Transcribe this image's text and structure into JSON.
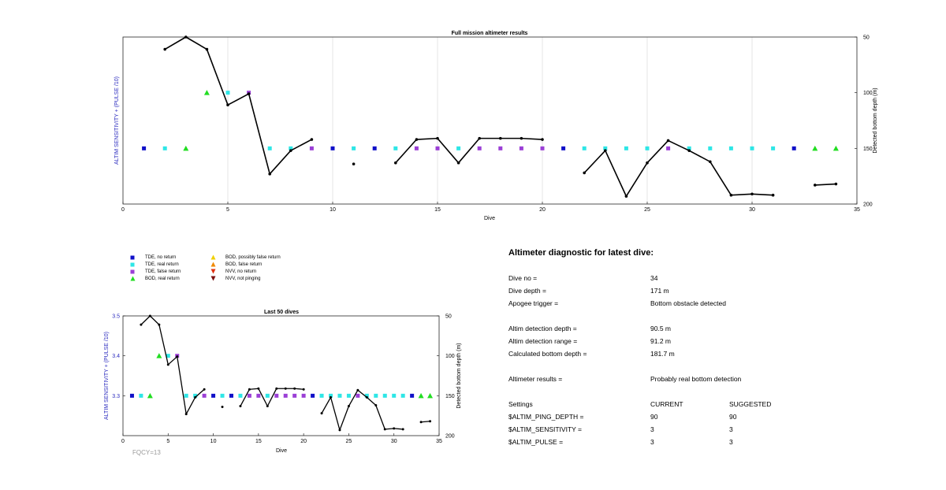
{
  "colors": {
    "tde_no_return": "#1010c8",
    "tde_real_return": "#2ee6e6",
    "tde_false_return": "#9b3fd6",
    "bod_real_return": "#22dd22",
    "bod_possibly_false": "#f0d000",
    "bod_false_return": "#f08a00",
    "nvv_no_return": "#e03010",
    "nvv_not_pinging": "#7a1010",
    "depth_line": "#000000",
    "left_axis_label": "#2b2bbf"
  },
  "legend": [
    {
      "label": "TDE, no return",
      "shape": "square",
      "color_key": "tde_no_return"
    },
    {
      "label": "TDE, real return",
      "shape": "square",
      "color_key": "tde_real_return"
    },
    {
      "label": "TDE, false return",
      "shape": "square",
      "color_key": "tde_false_return"
    },
    {
      "label": "BOD, real return",
      "shape": "triangle-up",
      "color_key": "bod_real_return"
    },
    {
      "label": "BOD, possibly false return",
      "shape": "triangle-up",
      "color_key": "bod_possibly_false"
    },
    {
      "label": "BOD, false return",
      "shape": "triangle-up",
      "color_key": "bod_false_return"
    },
    {
      "label": "NVV, no return",
      "shape": "triangle-down",
      "color_key": "nvv_no_return"
    },
    {
      "label": "NVV, not pinging",
      "shape": "triangle-down",
      "color_key": "nvv_not_pinging"
    }
  ],
  "chart_data": [
    {
      "type": "scatter",
      "title": "Full mission altimeter results",
      "xlabel": "Dive",
      "ylabel": "ALTIM SENSITIVITY + (PULSE /10)",
      "ylabel_right": "Detected bottom depth (m)",
      "xlim": [
        0,
        35
      ],
      "xticks": [
        0,
        5,
        10,
        15,
        20,
        25,
        30,
        35
      ],
      "ylim_right": [
        50,
        200
      ],
      "ylim_right_reversed": true,
      "yticks_right": [
        50,
        100,
        150,
        200
      ],
      "left_ticks": [],
      "ylim_left": [
        3.2,
        3.5
      ],
      "grid": "vertical",
      "markers": [
        {
          "x": 1,
          "y": 3.3,
          "type": "tde_no_return"
        },
        {
          "x": 2,
          "y": 3.3,
          "type": "tde_real_return"
        },
        {
          "x": 3,
          "y": 3.3,
          "type": "bod_real_return"
        },
        {
          "x": 4,
          "y": 3.4,
          "type": "bod_real_return"
        },
        {
          "x": 5,
          "y": 3.4,
          "type": "tde_real_return"
        },
        {
          "x": 6,
          "y": 3.4,
          "type": "tde_false_return"
        },
        {
          "x": 7,
          "y": 3.3,
          "type": "tde_real_return"
        },
        {
          "x": 8,
          "y": 3.3,
          "type": "tde_real_return"
        },
        {
          "x": 9,
          "y": 3.3,
          "type": "tde_false_return"
        },
        {
          "x": 10,
          "y": 3.3,
          "type": "tde_no_return"
        },
        {
          "x": 11,
          "y": 3.3,
          "type": "tde_real_return"
        },
        {
          "x": 12,
          "y": 3.3,
          "type": "tde_no_return"
        },
        {
          "x": 13,
          "y": 3.3,
          "type": "tde_real_return"
        },
        {
          "x": 14,
          "y": 3.3,
          "type": "tde_false_return"
        },
        {
          "x": 15,
          "y": 3.3,
          "type": "tde_false_return"
        },
        {
          "x": 16,
          "y": 3.3,
          "type": "tde_real_return"
        },
        {
          "x": 17,
          "y": 3.3,
          "type": "tde_false_return"
        },
        {
          "x": 18,
          "y": 3.3,
          "type": "tde_false_return"
        },
        {
          "x": 19,
          "y": 3.3,
          "type": "tde_false_return"
        },
        {
          "x": 20,
          "y": 3.3,
          "type": "tde_false_return"
        },
        {
          "x": 21,
          "y": 3.3,
          "type": "tde_no_return"
        },
        {
          "x": 22,
          "y": 3.3,
          "type": "tde_real_return"
        },
        {
          "x": 23,
          "y": 3.3,
          "type": "tde_real_return"
        },
        {
          "x": 24,
          "y": 3.3,
          "type": "tde_real_return"
        },
        {
          "x": 25,
          "y": 3.3,
          "type": "tde_real_return"
        },
        {
          "x": 26,
          "y": 3.3,
          "type": "tde_false_return"
        },
        {
          "x": 27,
          "y": 3.3,
          "type": "tde_real_return"
        },
        {
          "x": 28,
          "y": 3.3,
          "type": "tde_real_return"
        },
        {
          "x": 29,
          "y": 3.3,
          "type": "tde_real_return"
        },
        {
          "x": 30,
          "y": 3.3,
          "type": "tde_real_return"
        },
        {
          "x": 31,
          "y": 3.3,
          "type": "tde_real_return"
        },
        {
          "x": 32,
          "y": 3.3,
          "type": "tde_no_return"
        },
        {
          "x": 33,
          "y": 3.3,
          "type": "bod_real_return"
        },
        {
          "x": 34,
          "y": 3.3,
          "type": "bod_real_return"
        }
      ],
      "depth_segments": [
        [
          [
            2,
            61
          ],
          [
            3,
            50
          ],
          [
            4,
            61
          ],
          [
            5,
            111
          ],
          [
            6,
            101
          ],
          [
            7,
            173
          ],
          [
            8,
            152
          ],
          [
            9,
            142
          ]
        ],
        [
          [
            11,
            164
          ]
        ],
        [
          [
            13,
            163
          ],
          [
            14,
            142
          ],
          [
            15,
            141
          ],
          [
            16,
            163
          ],
          [
            17,
            141
          ],
          [
            18,
            141
          ],
          [
            19,
            141
          ],
          [
            20,
            142
          ]
        ],
        [
          [
            22,
            172
          ],
          [
            23,
            152
          ],
          [
            24,
            193
          ],
          [
            25,
            163
          ],
          [
            26,
            143
          ],
          [
            27,
            152
          ],
          [
            28,
            162
          ],
          [
            29,
            192
          ],
          [
            30,
            191
          ],
          [
            31,
            192
          ]
        ],
        [
          [
            33,
            183
          ],
          [
            34,
            182
          ]
        ]
      ]
    },
    {
      "type": "scatter",
      "title": "Last 50 dives",
      "xlabel": "Dive",
      "ylabel": "ALTIM SENSITIVITY + (PULSE /10)",
      "ylabel_right": "Detected bottom depth (m)",
      "xlim": [
        0,
        35
      ],
      "xticks": [
        0,
        5,
        10,
        15,
        20,
        25,
        30,
        35
      ],
      "ylim_left": [
        3.2,
        3.5
      ],
      "left_ticks": [
        3.3,
        3.4,
        3.5
      ],
      "ylim_right": [
        50,
        200
      ],
      "ylim_right_reversed": true,
      "yticks_right": [
        50,
        100,
        150,
        200
      ],
      "grid": "none",
      "annotation": "FQCY=13",
      "use_markers_of": 0,
      "use_depth_of": 0
    }
  ],
  "diagnostic": {
    "title": "Altimeter diagnostic for latest dive:",
    "rows": [
      {
        "label": "Dive no =",
        "value": "34"
      },
      {
        "label": "Dive depth =",
        "value": "171 m"
      },
      {
        "label": "Apogee trigger =",
        "value": "Bottom obstacle detected"
      },
      {
        "label": "Altim detection depth =",
        "value": "90.5 m"
      },
      {
        "label": "Altim detection range =",
        "value": "91.2 m"
      },
      {
        "label": "Calculated bottom depth =",
        "value": "181.7 m"
      },
      {
        "label": "Altimeter results =",
        "value": "Probably real bottom detection"
      }
    ],
    "settings": {
      "header": {
        "label": "Settings",
        "current": "CURRENT",
        "suggested": "SUGGESTED"
      },
      "rows": [
        {
          "label": "$ALTIM_PING_DEPTH =",
          "current": "90",
          "suggested": "90"
        },
        {
          "label": "$ALTIM_SENSITIVITY =",
          "current": "3",
          "suggested": "3"
        },
        {
          "label": "$ALTIM_PULSE =",
          "current": "3",
          "suggested": "3"
        }
      ]
    }
  }
}
